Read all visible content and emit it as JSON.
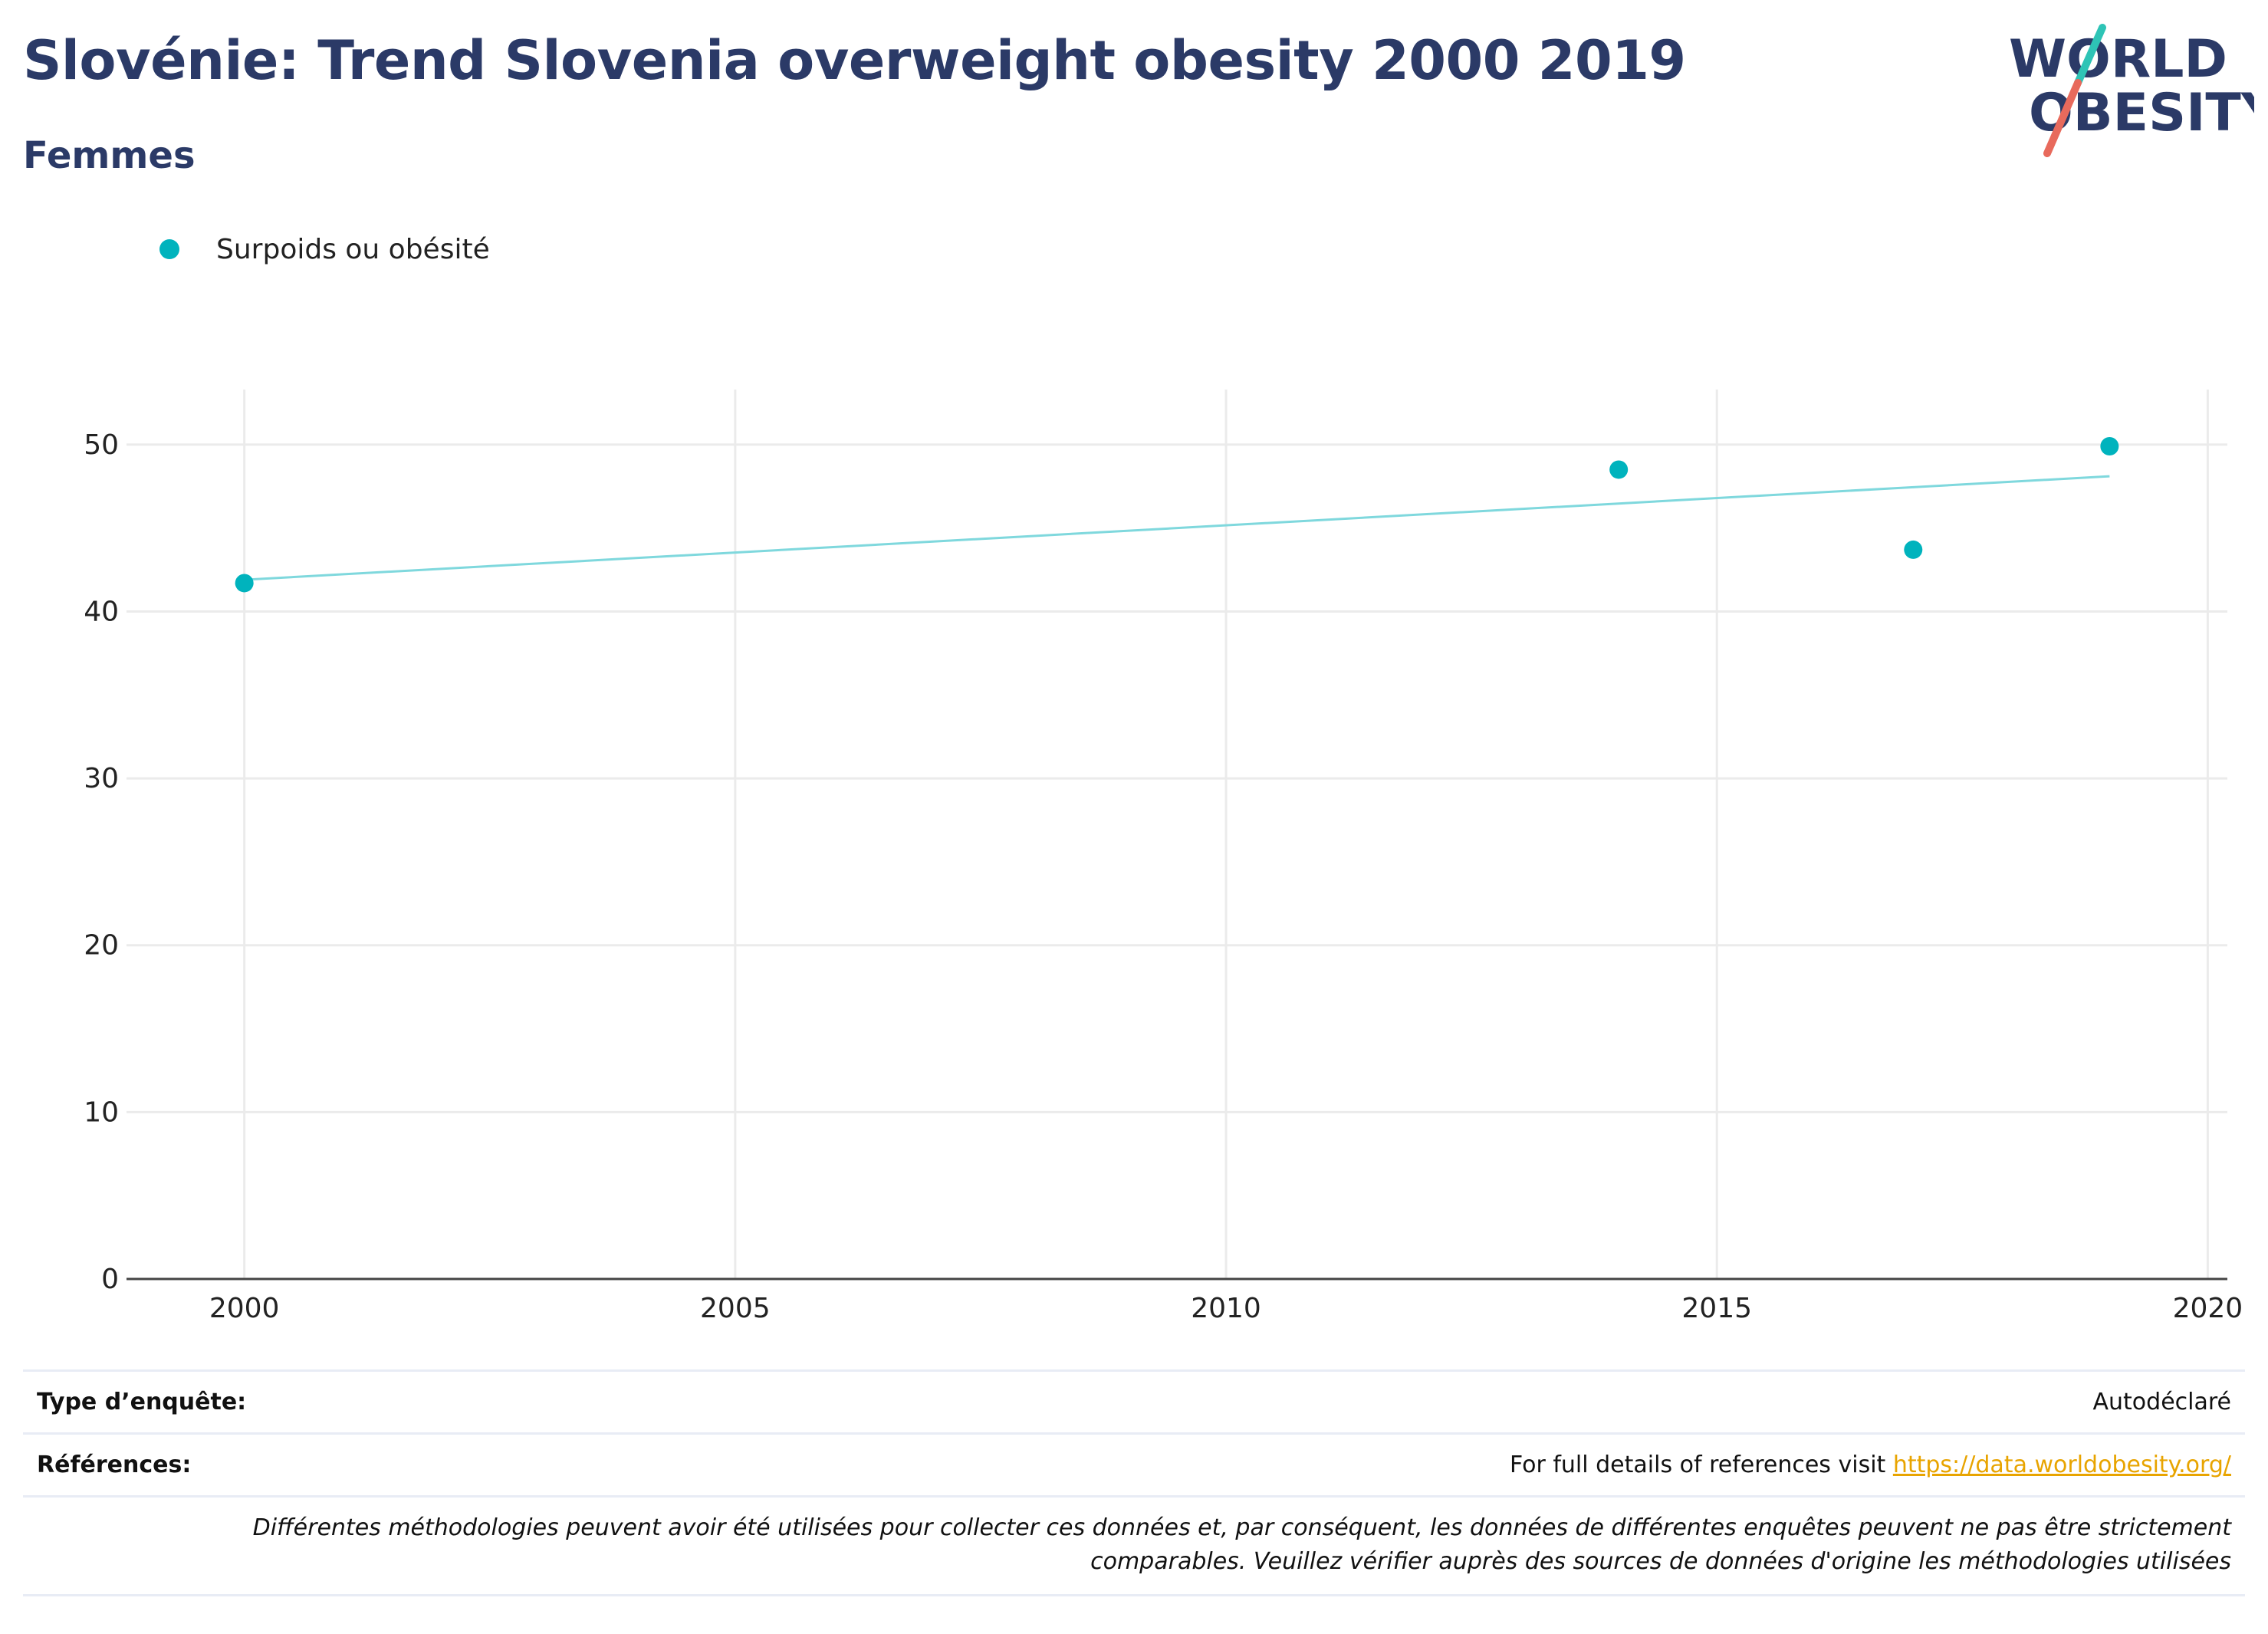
{
  "header": {
    "title": "Slovénie: Trend Slovenia overweight obesity 2000 2019",
    "subtitle": "Femmes"
  },
  "logo": {
    "line1": "WORLD",
    "line2": "OBESITY",
    "colors": {
      "text": "#2b3a67",
      "slash_top": "#2ec4b6",
      "slash_bottom": "#e86a5c"
    }
  },
  "legend": {
    "label": "Surpoids ou obésité",
    "color": "#00b3bd"
  },
  "chart_data": {
    "type": "scatter",
    "title": "Slovénie: Trend Slovenia overweight obesity 2000 2019",
    "subtitle": "Femmes",
    "series": [
      {
        "name": "Surpoids ou obésité",
        "color": "#00b3bd",
        "points": [
          {
            "x": 2000,
            "y": 41.7
          },
          {
            "x": 2014,
            "y": 48.5
          },
          {
            "x": 2017,
            "y": 43.7
          },
          {
            "x": 2019,
            "y": 49.9
          }
        ]
      }
    ],
    "trendline": {
      "color": "#7fd8dd",
      "start": {
        "x": 2000,
        "y": 41.9
      },
      "end": {
        "x": 2019,
        "y": 48.1
      }
    },
    "xlim": [
      1998.8,
      2020.2
    ],
    "ylim": [
      0,
      53.3
    ],
    "xticks": [
      2000,
      2005,
      2010,
      2015,
      2020
    ],
    "yticks": [
      0,
      10,
      20,
      30,
      40,
      50
    ],
    "grid": true,
    "legend_position": "top-left"
  },
  "info": {
    "survey_type_label": "Type d’enquête:",
    "survey_type_value": "Autodéclaré",
    "references_label": "Références:",
    "references_text": "For full details of references visit ",
    "references_link": "https://data.worldobesity.org/",
    "note_line1": "Différentes méthodologies peuvent avoir été utilisées pour collecter ces données et, par conséquent, les données de différentes enquêtes peuvent ne pas être strictement",
    "note_line2": "comparables. Veuillez vérifier auprès des sources de données d'origine les méthodologies utilisées"
  }
}
